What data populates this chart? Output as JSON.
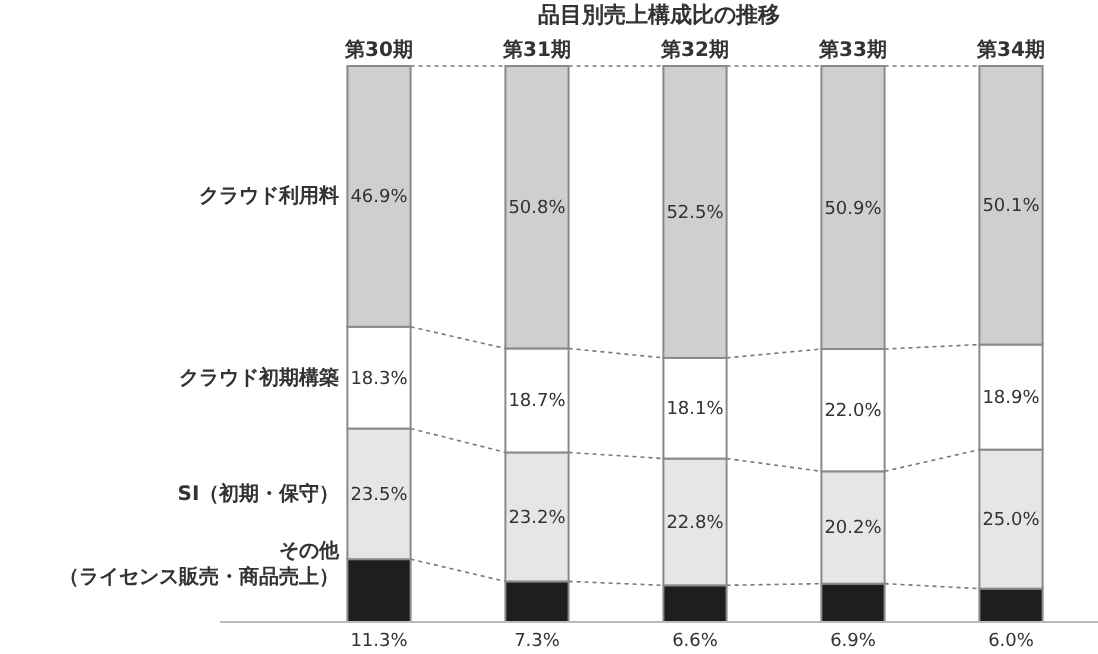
{
  "chart_data": {
    "type": "bar",
    "stacked": true,
    "title": "品目別売上構成比の推移",
    "categories": [
      "第30期",
      "第31期",
      "第32期",
      "第33期",
      "第34期"
    ],
    "series": [
      {
        "name": "その他（ライセンス販売・商品売上）",
        "color": "#1e1e1e",
        "values": [
          11.3,
          7.3,
          6.6,
          6.9,
          6.0
        ],
        "value_labels": [
          "11.3%",
          "7.3%",
          "6.6%",
          "6.9%",
          "6.0%"
        ]
      },
      {
        "name": "SI（初期・保守）",
        "color": "#e6e6e6",
        "values": [
          23.5,
          23.2,
          22.8,
          20.2,
          25.0
        ],
        "value_labels": [
          "23.5%",
          "23.2%",
          "22.8%",
          "20.2%",
          "25.0%"
        ]
      },
      {
        "name": "クラウド初期構築",
        "color": "#ffffff",
        "values": [
          18.3,
          18.7,
          18.1,
          22.0,
          18.9
        ],
        "value_labels": [
          "18.3%",
          "18.7%",
          "18.1%",
          "22.0%",
          "18.9%"
        ]
      },
      {
        "name": "クラウド利用料",
        "color": "#cfcfcf",
        "values": [
          46.9,
          50.8,
          52.5,
          50.9,
          50.1
        ],
        "value_labels": [
          "46.9%",
          "50.8%",
          "52.5%",
          "50.9%",
          "50.1%"
        ]
      }
    ],
    "legend": false
  }
}
